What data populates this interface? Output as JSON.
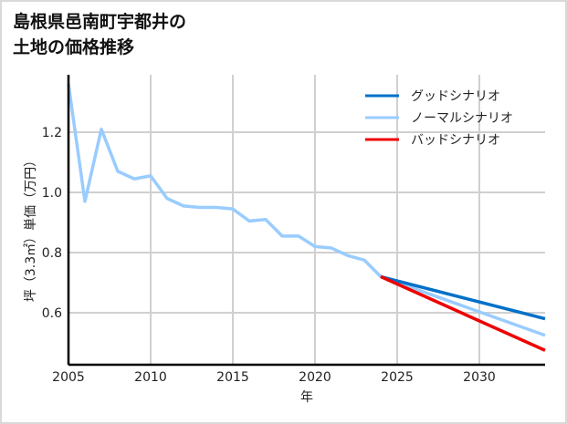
{
  "title_line1": "島根県邑南町宇都井の",
  "title_line2": "土地の価格推移",
  "colors": {
    "good": "#0070c8",
    "normal": "#99ccff",
    "bad": "#ee0000",
    "grid": "#d0d0d0",
    "axis": "#000000"
  },
  "chart_data": {
    "type": "line",
    "title": "島根県邑南町宇都井の土地の価格推移",
    "xlabel": "年",
    "ylabel": "坪（3.3㎡）単価（万円）",
    "xlim": [
      2005,
      2034
    ],
    "ylim": [
      0.45,
      1.4
    ],
    "xticks": [
      2005,
      2010,
      2015,
      2020,
      2025,
      2030
    ],
    "yticks": [
      0.6,
      0.8,
      1.0,
      1.2
    ],
    "grid": true,
    "legend_position": "upper right",
    "series": [
      {
        "name": "グッドシナリオ",
        "color": "#0070c8",
        "x": [
          2024,
          2034
        ],
        "values": [
          0.72,
          0.58
        ]
      },
      {
        "name": "ノーマルシナリオ",
        "color": "#99ccff",
        "x": [
          2005,
          2006,
          2007,
          2008,
          2009,
          2010,
          2011,
          2012,
          2013,
          2014,
          2015,
          2016,
          2017,
          2018,
          2019,
          2020,
          2021,
          2022,
          2023,
          2024,
          2034
        ],
        "values": [
          1.36,
          0.97,
          1.21,
          1.07,
          1.045,
          1.055,
          0.98,
          0.955,
          0.95,
          0.95,
          0.945,
          0.905,
          0.91,
          0.855,
          0.855,
          0.82,
          0.815,
          0.79,
          0.775,
          0.72,
          0.525
        ]
      },
      {
        "name": "バッドシナリオ",
        "color": "#ee0000",
        "x": [
          2024,
          2034
        ],
        "values": [
          0.72,
          0.475
        ]
      }
    ]
  }
}
